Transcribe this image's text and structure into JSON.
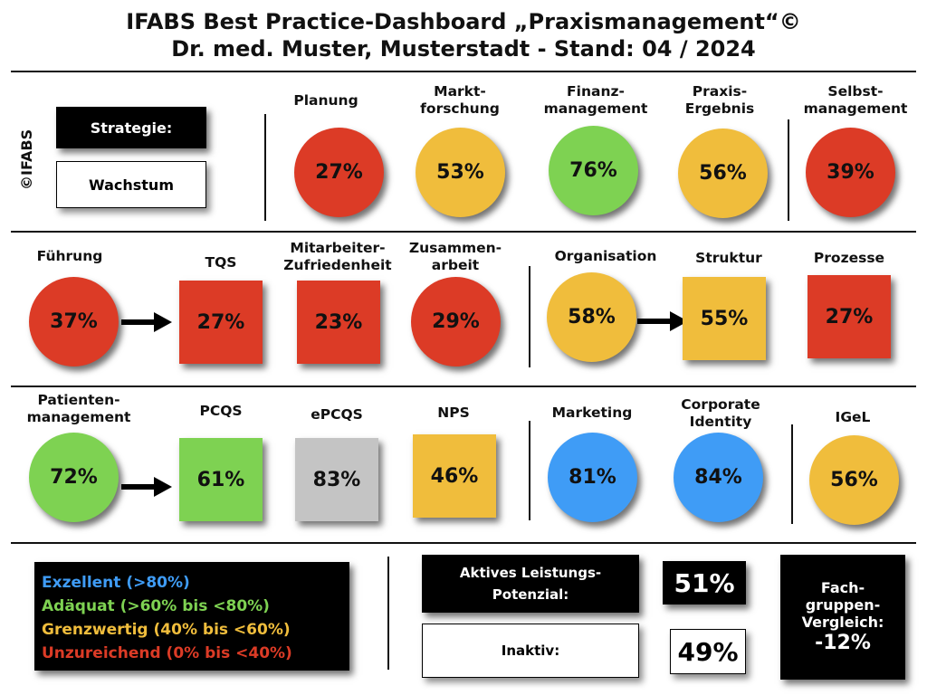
{
  "header": {
    "title_line1": "IFABS Best Practice-Dashboard „Praxismanagement“©",
    "title_line2": "Dr. med. Muster, Musterstadt - Stand: 04 / 2024"
  },
  "colors": {
    "red": "#dc3b26",
    "orange": "#f0bd3c",
    "green": "#7ed252",
    "blue": "#3f9cf6",
    "gray": "#c4c4c4"
  },
  "side_label": "©IFABS",
  "strategy": {
    "label": "Strategie:",
    "value": "Wachstum"
  },
  "row1": [
    {
      "id": "planung",
      "label": "Planung",
      "value": "27%"
    },
    {
      "id": "marktforschung",
      "label": "Markt-\nforschung",
      "value": "53%"
    },
    {
      "id": "finanzmanagement",
      "label": "Finanz-\nmanagement",
      "value": "76%"
    },
    {
      "id": "praxisergebnis",
      "label": "Praxis-\nErgebnis",
      "value": "56%"
    },
    {
      "id": "selbstmanagement",
      "label": "Selbst-\nmanagement",
      "value": "39%"
    }
  ],
  "row2": [
    {
      "id": "fuehrung",
      "label": "Führung",
      "value": "37%"
    },
    {
      "id": "tqs",
      "label": "TQS",
      "value": "27%"
    },
    {
      "id": "mitarbeiterzufriedenheit",
      "label": "Mitarbeiter-\nZufriedenheit",
      "value": "23%"
    },
    {
      "id": "zusammenarbeit",
      "label": "Zusammen-\narbeit",
      "value": "29%"
    },
    {
      "id": "organisation",
      "label": "Organisation",
      "value": "58%"
    },
    {
      "id": "struktur",
      "label": "Struktur",
      "value": "55%"
    },
    {
      "id": "prozesse",
      "label": "Prozesse",
      "value": "27%"
    }
  ],
  "row3": [
    {
      "id": "patientenmanagement",
      "label": "Patienten-\nmanagement",
      "value": "72%"
    },
    {
      "id": "pcqs",
      "label": "PCQS",
      "value": "61%"
    },
    {
      "id": "epcqs",
      "label": "ePCQS",
      "value": "83%"
    },
    {
      "id": "nps",
      "label": "NPS",
      "value": "46%"
    },
    {
      "id": "marketing",
      "label": "Marketing",
      "value": "81%"
    },
    {
      "id": "corporateidentity",
      "label": "Corporate\nIdentity",
      "value": "84%"
    },
    {
      "id": "igel",
      "label": "IGeL",
      "value": "56%"
    }
  ],
  "legend": {
    "excellent": "Exzellent (>80%)",
    "adequate": "Adäquat (>60% bis <80%)",
    "borderline": "Grenzwertig (40% bis <60%)",
    "insufficient": "Unzureichend (0% bis <40%)"
  },
  "potential": {
    "active_label": "Aktives Leistungs-\nPotenzial:",
    "active_value": "51%",
    "inactive_label": "Inaktiv:",
    "inactive_value": "49%"
  },
  "comparison": {
    "label": "Fach-\ngruppen-\nVergleich:",
    "value": "-12%"
  }
}
